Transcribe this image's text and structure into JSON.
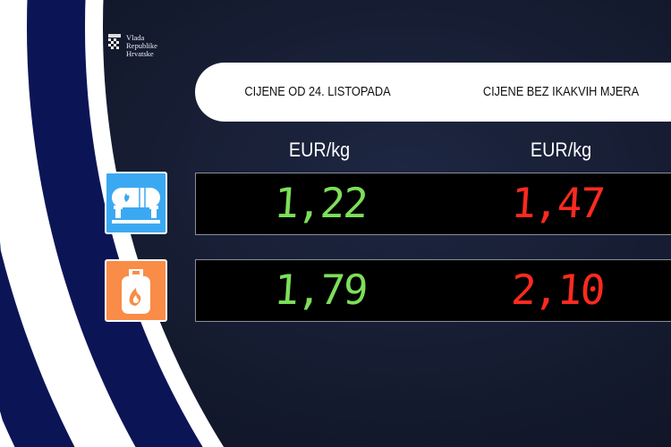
{
  "logo": {
    "line1": "Vlada",
    "line2": "Republike",
    "line3": "Hrvatske"
  },
  "header": {
    "col1": "CIJENE OD 24. LISTOPADA",
    "col2": "CIJENE BEZ IKAKVIH MJERA"
  },
  "units": {
    "col1": "EUR/kg",
    "col2": "EUR/kg"
  },
  "rows": [
    {
      "icon": "gas-tank-icon",
      "current": "1,22",
      "without_measures": "1,47"
    },
    {
      "icon": "gas-cylinder-icon",
      "current": "1,79",
      "without_measures": "2,10"
    }
  ],
  "colors": {
    "current": "#7ddf5a",
    "without_measures": "#ff2a1f",
    "tank_icon_bg": "#3ba9f1",
    "cylinder_icon_bg": "#f98c46",
    "navy": "#0b1556"
  }
}
